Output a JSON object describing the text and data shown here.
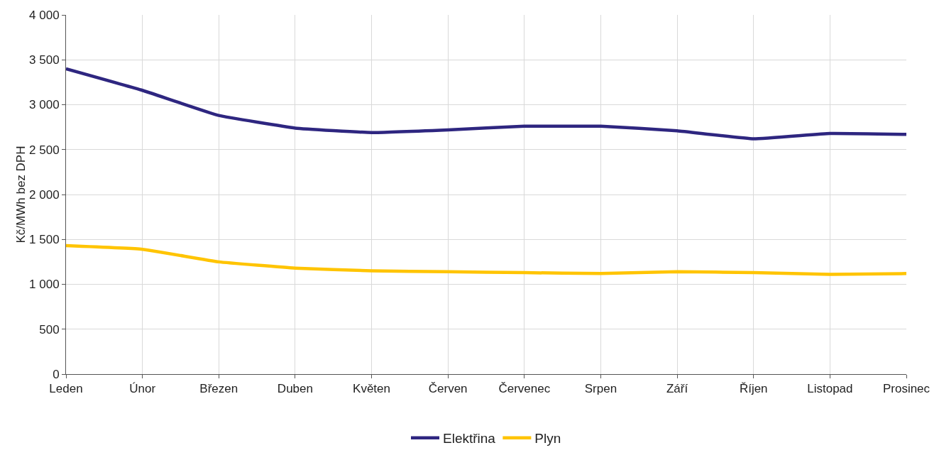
{
  "chart_data": {
    "type": "line",
    "ylabel": "Kč/MWh bez DPH",
    "categories": [
      "Leden",
      "Únor",
      "Březen",
      "Duben",
      "Květen",
      "Červen",
      "Červenec",
      "Srpen",
      "Září",
      "Říjen",
      "Listopad",
      "Prosinec"
    ],
    "series": [
      {
        "name": "Elektřina",
        "color": "#2e2680",
        "values": [
          3400,
          3160,
          2880,
          2740,
          2690,
          2720,
          2760,
          2760,
          2710,
          2620,
          2680,
          2670
        ]
      },
      {
        "name": "Plyn",
        "color": "#ffc400",
        "values": [
          1430,
          1390,
          1250,
          1180,
          1150,
          1140,
          1130,
          1120,
          1140,
          1130,
          1110,
          1120
        ]
      }
    ],
    "ylim": [
      0,
      4000
    ],
    "yticks": [
      {
        "value": 0,
        "label": "0"
      },
      {
        "value": 500,
        "label": "500"
      },
      {
        "value": 1000,
        "label": "1 000"
      },
      {
        "value": 1500,
        "label": "1 500"
      },
      {
        "value": 2000,
        "label": "2 000"
      },
      {
        "value": 2500,
        "label": "2 500"
      },
      {
        "value": 3000,
        "label": "3 000"
      },
      {
        "value": 3500,
        "label": "3 500"
      },
      {
        "value": 4000,
        "label": "4 000"
      }
    ],
    "grid": true,
    "legend": "bottom",
    "marker": "none",
    "line_style": "solid"
  }
}
